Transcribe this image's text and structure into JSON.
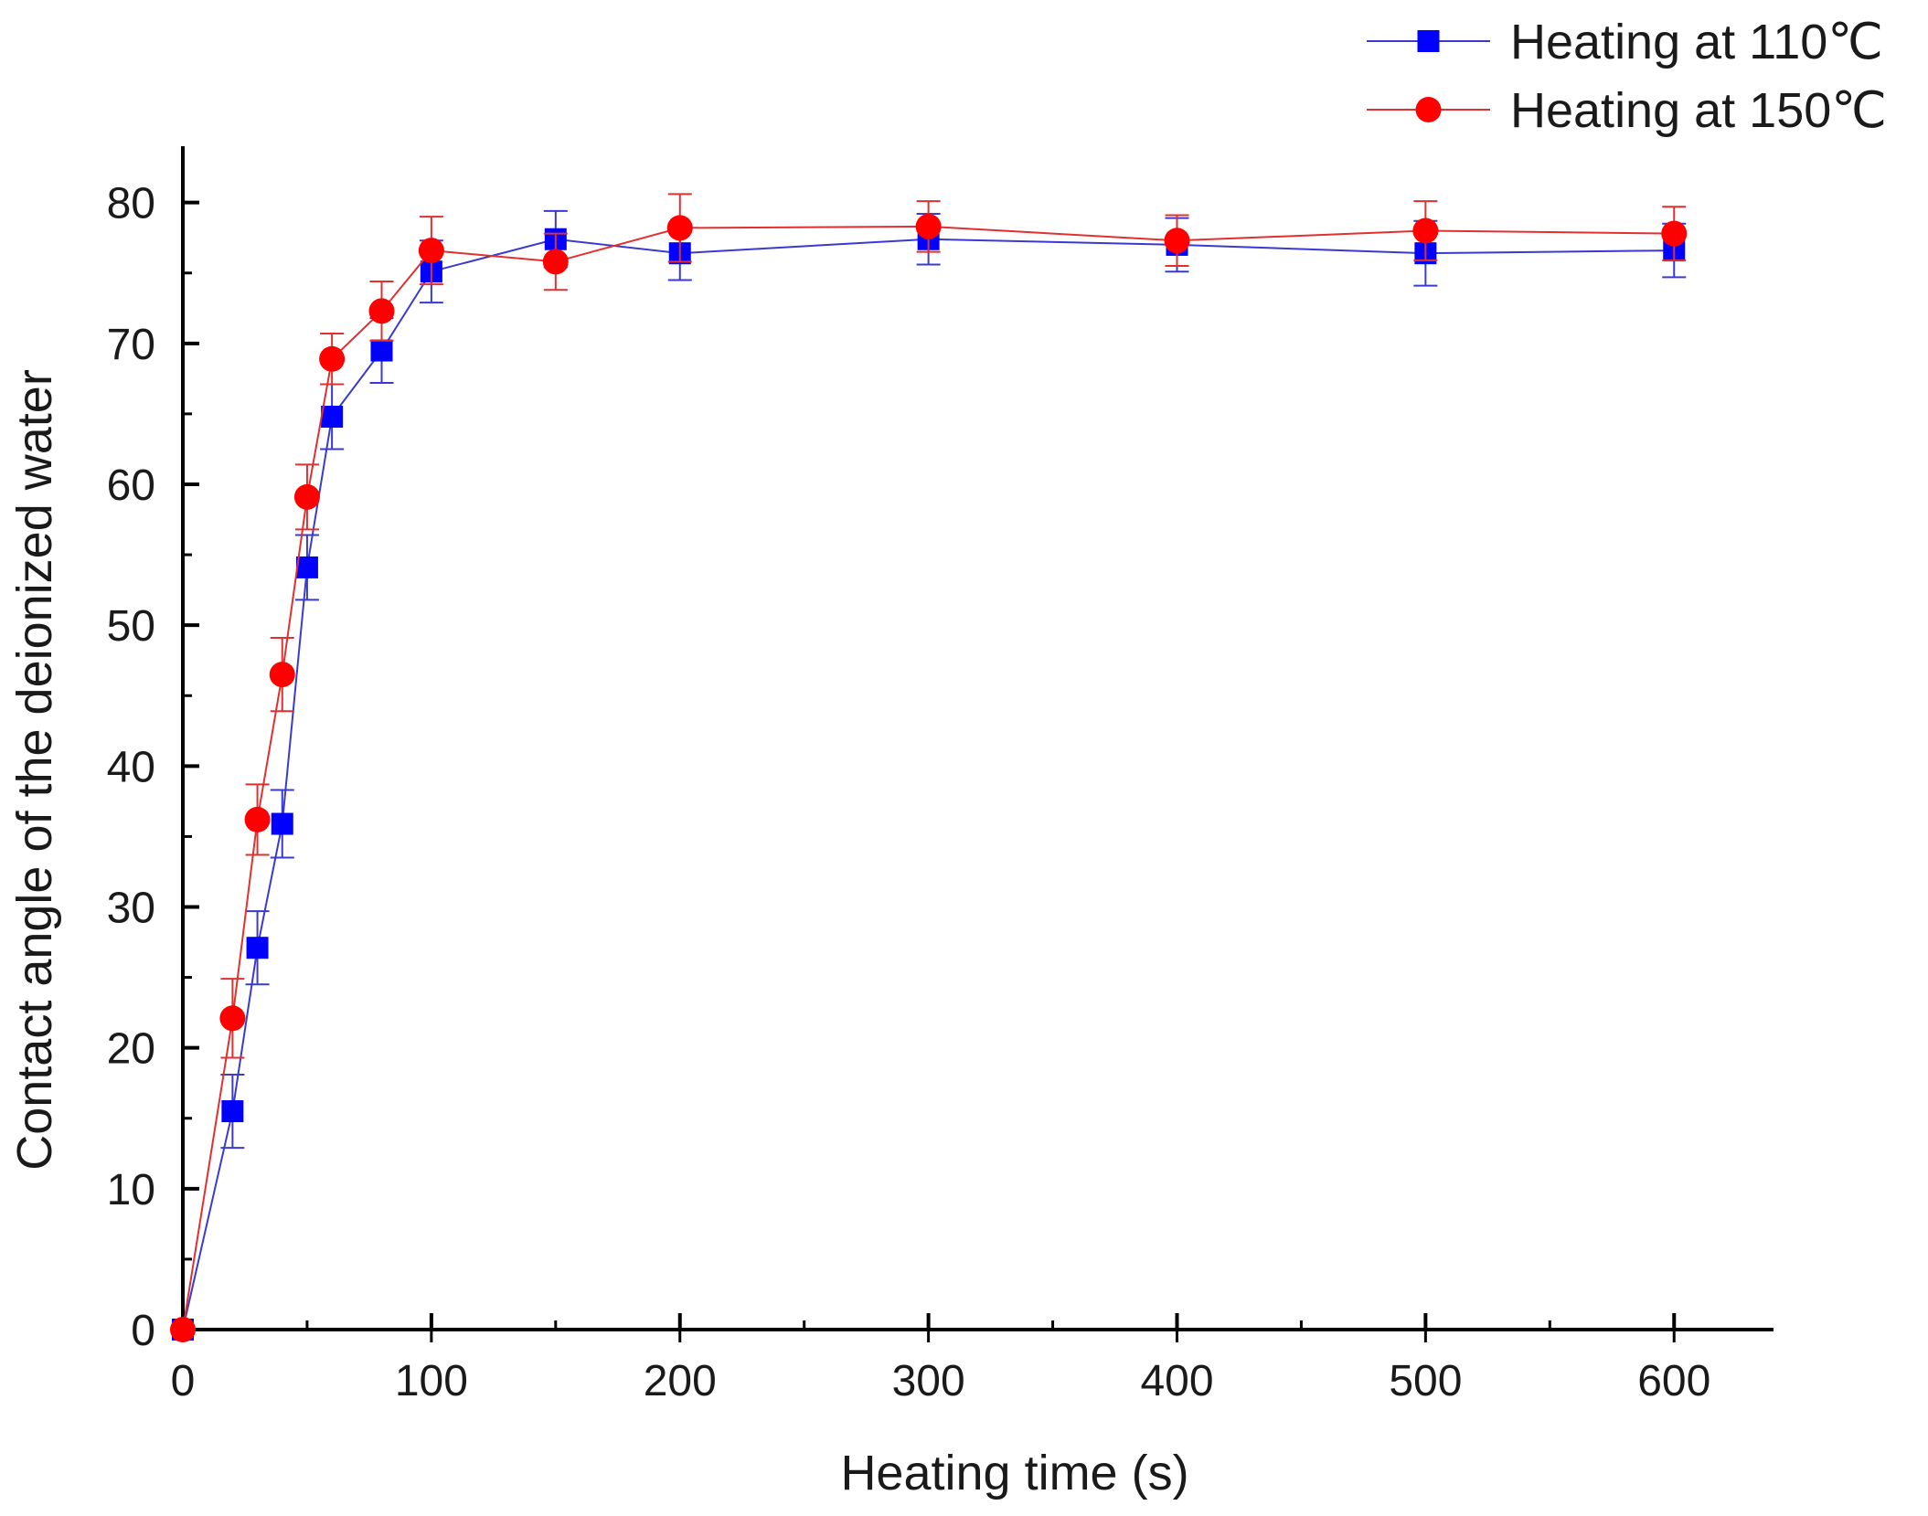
{
  "chart_data": {
    "type": "line",
    "title": "",
    "xlabel": "Heating time (s)",
    "ylabel": "Contact angle of the deionized water",
    "xlim": [
      0,
      640
    ],
    "ylim": [
      0,
      84
    ],
    "xticks": [
      0,
      100,
      200,
      300,
      400,
      500,
      600
    ],
    "yticks": [
      0,
      10,
      20,
      30,
      40,
      50,
      60,
      70,
      80
    ],
    "xtick_labels": [
      "0",
      "100",
      "200",
      "300",
      "400",
      "500",
      "600"
    ],
    "ytick_labels": [
      "0",
      "10",
      "20",
      "30",
      "40",
      "50",
      "60",
      "70",
      "80"
    ],
    "legend_position": "top-right",
    "x": [
      0,
      20,
      30,
      40,
      50,
      60,
      80,
      100,
      150,
      200,
      300,
      400,
      500,
      600
    ],
    "series": [
      {
        "name": "Heating at 110℃",
        "marker": "square",
        "color": "#0000ff",
        "line_color": "#3a3ad0",
        "values": [
          0,
          15.5,
          27.1,
          35.9,
          54.1,
          64.8,
          69.5,
          75.1,
          77.4,
          76.4,
          77.4,
          77.0,
          76.4,
          76.6
        ],
        "errors": [
          0,
          2.6,
          2.6,
          2.4,
          2.3,
          2.3,
          2.3,
          2.2,
          2.0,
          1.9,
          1.8,
          1.9,
          2.3,
          1.9
        ]
      },
      {
        "name": "Heating at 150℃",
        "marker": "circle",
        "color": "#ff0000",
        "line_color": "#e03030",
        "values": [
          0,
          22.1,
          36.2,
          46.5,
          59.1,
          68.9,
          72.3,
          76.6,
          75.8,
          78.2,
          78.3,
          77.3,
          78.0,
          77.8
        ],
        "errors": [
          0,
          2.8,
          2.5,
          2.6,
          2.3,
          1.8,
          2.1,
          2.4,
          2.0,
          2.4,
          1.8,
          1.8,
          2.1,
          1.9
        ]
      }
    ]
  }
}
